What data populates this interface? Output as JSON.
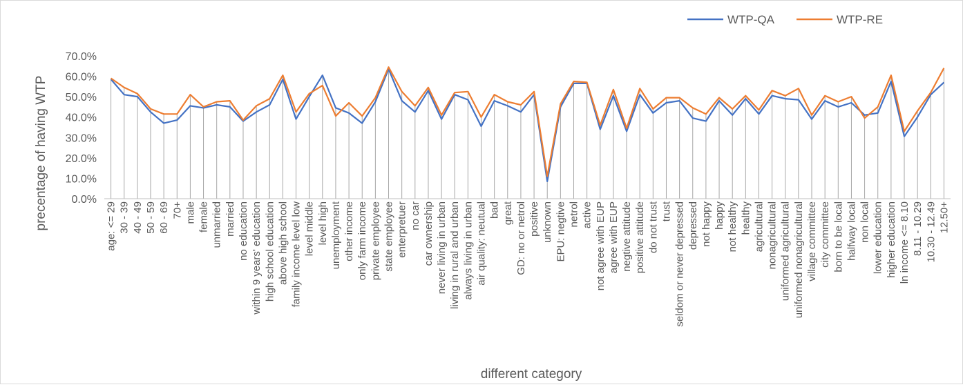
{
  "chart_data": {
    "type": "line",
    "title": "",
    "xlabel": "different category",
    "ylabel": "precentage of having WTP",
    "ylim": [
      0,
      70
    ],
    "yticks": [
      "0.0%",
      "10.0%",
      "20.0%",
      "30.0%",
      "40.0%",
      "50.0%",
      "60.0%",
      "70.0%"
    ],
    "grid": "vertical drop lines",
    "legend": "top-right",
    "categories": [
      "age: <= 29",
      "30 - 39",
      "40 - 49",
      "50 - 59",
      "60 - 69",
      "70+",
      "male",
      "female",
      "unmarried",
      "married",
      "no education",
      "within 9 years' education",
      "high school education",
      "above high school",
      "family income level low",
      "level middle",
      "level high",
      "unemployment",
      "other income",
      "only farm income",
      "private employee",
      "state employee",
      "enterpretuer",
      "no car",
      "car ownership",
      "never living in urban",
      "living in  rural and urban",
      "always living in urban",
      "air quality: neutual",
      "bad",
      "great",
      "GD: no or netrol",
      "positive",
      "unknown",
      "EPU: negtive",
      "netrol",
      "active",
      "not agree with EUP",
      "agree with EUP",
      "negtive attitude",
      "positive attitude",
      "do not trust",
      "trust",
      "seldom or never depressed",
      "depressed",
      "not happy",
      "happy",
      "not healthy",
      "healthy",
      "agricultural",
      "nonagricultural",
      "uniformed agricultural",
      "uniformed nonagricultural",
      "village committee",
      "city committee",
      "born to be local",
      "halfway local",
      "non local",
      "lower education",
      "higher education",
      "ln income <= 8.10",
      "8.11 - 10.29",
      "10.30 - 12.49",
      "12.50+"
    ],
    "series": [
      {
        "name": "WTP-QA",
        "color": "#4472c4",
        "values": [
          58.5,
          51.0,
          50.0,
          42.5,
          37.0,
          38.5,
          45.5,
          44.5,
          46.0,
          45.0,
          38.0,
          42.5,
          46.0,
          58.5,
          39.0,
          50.0,
          60.5,
          44.5,
          42.0,
          37.0,
          47.5,
          63.5,
          48.0,
          42.5,
          53.0,
          39.0,
          51.0,
          48.5,
          35.5,
          48.0,
          45.5,
          42.5,
          51.0,
          8.5,
          45.0,
          56.5,
          56.5,
          34.0,
          50.5,
          33.0,
          51.0,
          42.0,
          47.0,
          48.0,
          39.5,
          38.0,
          48.0,
          41.0,
          49.0,
          41.5,
          50.5,
          49.0,
          48.5,
          39.0,
          48.0,
          45.0,
          47.0,
          41.0,
          42.0,
          57.5,
          30.5,
          40.0,
          51.0,
          57.0
        ]
      },
      {
        "name": "WTP-RE",
        "color": "#ed7d31",
        "values": [
          59.0,
          54.5,
          51.5,
          44.0,
          41.5,
          41.5,
          51.0,
          45.0,
          47.5,
          48.0,
          38.5,
          45.5,
          49.0,
          60.5,
          42.5,
          51.5,
          55.5,
          40.5,
          47.0,
          40.5,
          49.5,
          64.5,
          52.5,
          45.5,
          54.5,
          41.0,
          52.0,
          52.5,
          40.0,
          51.0,
          47.5,
          46.0,
          52.5,
          11.0,
          46.5,
          57.5,
          57.0,
          36.0,
          53.5,
          34.5,
          54.0,
          44.0,
          49.5,
          49.5,
          44.5,
          41.5,
          49.5,
          44.0,
          50.5,
          43.5,
          53.0,
          50.5,
          54.0,
          41.0,
          50.5,
          47.5,
          50.0,
          39.5,
          45.0,
          60.5,
          33.0,
          43.0,
          52.0,
          64.0
        ]
      }
    ]
  }
}
